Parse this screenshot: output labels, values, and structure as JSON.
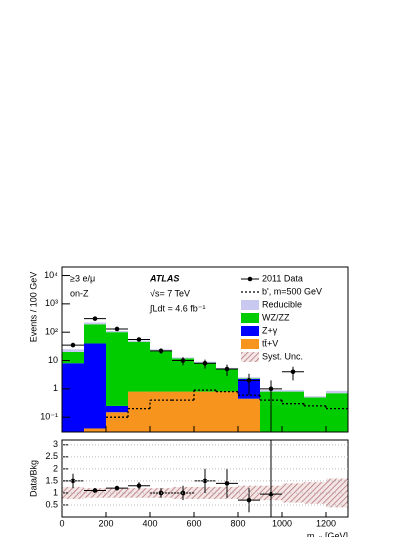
{
  "chart_data": {
    "type": "stacked_histogram",
    "bins": [
      0,
      100,
      200,
      300,
      400,
      500,
      600,
      700,
      800,
      900,
      1000,
      1100,
      1200,
      1300
    ],
    "log_y": true,
    "ylabel": "Events / 100 GeV",
    "x_label": {
      "main": "m",
      "sub": "eff",
      "unit": "[GeV]"
    },
    "annotations": [
      "≥3 e/μ",
      "on-Z",
      "ATLAS",
      "√s= 7 TeV",
      "∫Ldt = 4.6 fb⁻¹"
    ],
    "xlim": [
      0,
      1300
    ],
    "xticks": [
      0,
      200,
      400,
      600,
      800,
      1000,
      1200
    ],
    "ylim": [
      0.03,
      20000
    ],
    "yticks": [
      {
        "value": 0.1,
        "label": "10⁻¹"
      },
      1,
      10,
      {
        "value": 100,
        "label": "10²"
      },
      {
        "value": 1000,
        "label": "10³"
      },
      {
        "value": 10000,
        "label": "10⁴"
      }
    ],
    "series": [
      {
        "name": "tt̄+V",
        "color": "#f7941d",
        "values": [
          0,
          0.04,
          0.15,
          0.8,
          0.8,
          0.8,
          0.8,
          0.8,
          0.45,
          0,
          0,
          0,
          0
        ]
      },
      {
        "name": "Z+γ",
        "color": "#0000ff",
        "values": [
          8,
          40,
          0.1,
          0,
          0,
          0,
          0,
          0,
          1.8,
          0,
          0,
          0,
          0
        ]
      },
      {
        "name": "WZ/ZZ",
        "color": "#00cc00",
        "values": [
          12,
          150,
          100,
          45,
          22,
          11,
          7.5,
          4.2,
          0.1,
          0.8,
          0.8,
          0.5,
          0.7
        ]
      },
      {
        "name": "Reducible",
        "color": "#c8c8f0",
        "values": [
          5,
          30,
          10,
          5,
          2,
          1,
          0.8,
          0.5,
          0.2,
          0.1,
          0.1,
          0.05,
          0.15
        ]
      }
    ],
    "data": {
      "name": "2011 Data",
      "color": "#000000",
      "values": [
        35,
        300,
        130,
        55,
        22,
        10,
        8,
        5,
        2,
        1,
        4,
        null,
        null
      ],
      "errors": [
        6,
        17,
        11,
        7,
        4.7,
        3.2,
        2.8,
        2.2,
        1.4,
        1,
        2,
        null,
        null
      ]
    },
    "signal": {
      "name": "b', m=500 GeV",
      "color": "#000000",
      "values": [
        null,
        null,
        0.1,
        0.2,
        0.4,
        0.4,
        0.9,
        0.8,
        0.6,
        0.4,
        0.3,
        0.25,
        0.2
      ]
    },
    "unc_name": "Syst. Unc.",
    "ratio": {
      "ylabel": "Data/Bkg",
      "ylim": [
        0,
        3.2
      ],
      "yticks": [
        0.5,
        1,
        1.5,
        2,
        2.5,
        3
      ],
      "values": [
        1.5,
        1.1,
        1.2,
        1.3,
        1.0,
        1.0,
        1.5,
        1.4,
        0.7,
        0.95,
        null,
        null,
        null
      ],
      "errors": [
        0.3,
        0.1,
        0.1,
        0.15,
        0.2,
        0.3,
        0.5,
        0.6,
        0.5,
        2.5,
        null,
        null,
        null
      ],
      "unc": [
        0.25,
        0.2,
        0.2,
        0.2,
        0.2,
        0.25,
        0.25,
        0.25,
        0.3,
        0.3,
        0.4,
        0.45,
        0.6
      ]
    }
  }
}
